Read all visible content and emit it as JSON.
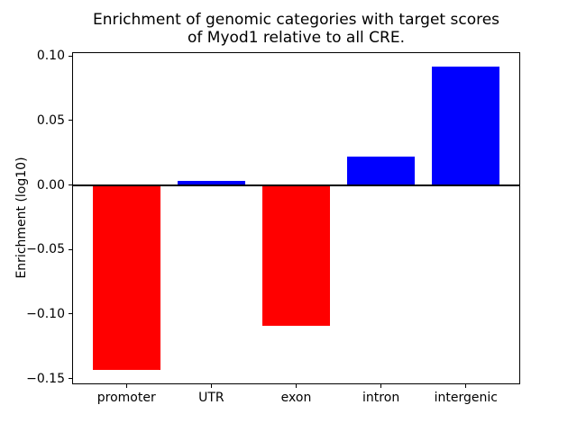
{
  "figure": {
    "background_color": "#ffffff",
    "text_color": "#000000"
  },
  "chart_data": {
    "type": "bar",
    "title": "Enrichment of genomic categories with target scores\nof Myod1 relative to all CRE.",
    "xlabel": "",
    "ylabel": "Enrichment (log10)",
    "categories": [
      "promoter",
      "UTR",
      "exon",
      "intron",
      "intergenic"
    ],
    "values": [
      -0.143,
      0.003,
      -0.109,
      0.022,
      0.092
    ],
    "bar_colors": [
      "#ff0000",
      "#0000ff",
      "#ff0000",
      "#0000ff",
      "#0000ff"
    ],
    "positive_color": "#0000ff",
    "negative_color": "#ff0000",
    "yticks": [
      0.1,
      0.05,
      0.0,
      -0.05,
      -0.1,
      -0.15
    ],
    "ytick_labels": [
      "0.10",
      "0.05",
      "0.00",
      "−0.05",
      "−0.10",
      "−0.15"
    ],
    "ylim": [
      -0.1545,
      0.103
    ],
    "xlim": [
      -0.64,
      4.64
    ],
    "bar_width": 0.8,
    "grid": false,
    "legend": null,
    "zero_line": true,
    "zero_line_color": "#000000",
    "axis_color": "#000000"
  }
}
